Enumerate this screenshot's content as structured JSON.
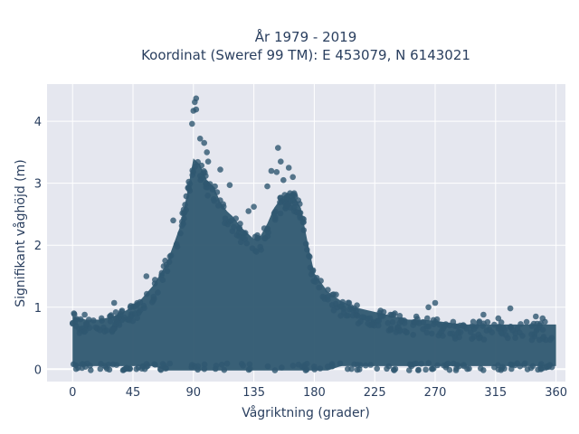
{
  "chart_data": {
    "type": "scatter",
    "title_line1": "År 1979 - 2019",
    "title_line2": "Koordinat (Sweref 99 TM): E 453079, N 6143021",
    "xlabel": "Vågriktning (grader)",
    "ylabel": "Signifikant våghöjd (m)",
    "xlim": [
      -19,
      367
    ],
    "ylim": [
      -0.2,
      4.6
    ],
    "x_ticks": [
      0,
      45,
      90,
      135,
      180,
      225,
      270,
      315,
      360
    ],
    "x_tick_labels": [
      "0",
      "45",
      "90",
      "135",
      "180",
      "225",
      "270",
      "315",
      "360"
    ],
    "y_ticks": [
      0,
      1,
      2,
      3,
      4
    ],
    "y_tick_labels": [
      "0",
      "1",
      "2",
      "3",
      "4"
    ],
    "grid": true,
    "colors": {
      "marker": "#2f5870",
      "plot_bg": "#e5e7ef",
      "grid": "#ffffff",
      "text": "#2a3f5f"
    },
    "envelope": {
      "x": [
        0,
        10,
        20,
        30,
        40,
        50,
        60,
        70,
        80,
        85,
        90,
        95,
        100,
        105,
        110,
        115,
        120,
        125,
        130,
        135,
        140,
        145,
        150,
        155,
        160,
        165,
        170,
        175,
        180,
        190,
        200,
        210,
        220,
        230,
        240,
        250,
        260,
        270,
        280,
        290,
        300,
        310,
        320,
        330,
        340,
        350,
        360
      ],
      "upper": [
        0.85,
        0.8,
        0.8,
        0.85,
        0.95,
        1.1,
        1.35,
        1.7,
        2.3,
        2.8,
        3.4,
        3.3,
        3.05,
        2.95,
        2.7,
        2.55,
        2.45,
        2.3,
        2.2,
        2.1,
        2.15,
        2.35,
        2.6,
        2.75,
        2.85,
        2.8,
        2.6,
        2.05,
        1.55,
        1.25,
        1.1,
        1.0,
        0.95,
        0.9,
        0.85,
        0.8,
        0.8,
        0.78,
        0.75,
        0.72,
        0.72,
        0.72,
        0.72,
        0.72,
        0.72,
        0.72,
        0.72
      ]
    },
    "notable_points": [
      {
        "x": 92,
        "y": 4.37
      },
      {
        "x": 91,
        "y": 4.31
      },
      {
        "x": 90,
        "y": 4.17
      },
      {
        "x": 92,
        "y": 4.19
      },
      {
        "x": 89,
        "y": 3.96
      },
      {
        "x": 95,
        "y": 3.72
      },
      {
        "x": 98,
        "y": 3.65
      },
      {
        "x": 100,
        "y": 3.5
      },
      {
        "x": 101,
        "y": 3.35
      },
      {
        "x": 110,
        "y": 3.22
      },
      {
        "x": 117,
        "y": 2.97
      },
      {
        "x": 153,
        "y": 3.57
      },
      {
        "x": 155,
        "y": 3.35
      },
      {
        "x": 148,
        "y": 3.2
      },
      {
        "x": 152,
        "y": 3.18
      },
      {
        "x": 161,
        "y": 3.25
      },
      {
        "x": 164,
        "y": 3.1
      },
      {
        "x": 157,
        "y": 3.05
      },
      {
        "x": 145,
        "y": 2.95
      },
      {
        "x": 135,
        "y": 2.62
      },
      {
        "x": 131,
        "y": 2.55
      },
      {
        "x": 75,
        "y": 2.4
      },
      {
        "x": 69,
        "y": 1.75
      },
      {
        "x": 55,
        "y": 1.5
      },
      {
        "x": 31,
        "y": 1.07
      },
      {
        "x": 9,
        "y": 0.88
      },
      {
        "x": 1,
        "y": 0.9
      },
      {
        "x": 265,
        "y": 1.0
      },
      {
        "x": 270,
        "y": 1.07
      },
      {
        "x": 256,
        "y": 0.85
      },
      {
        "x": 306,
        "y": 0.88
      },
      {
        "x": 317,
        "y": 0.82
      },
      {
        "x": 326,
        "y": 0.98
      },
      {
        "x": 345,
        "y": 0.85
      },
      {
        "x": 350,
        "y": 0.82
      },
      {
        "x": 240,
        "y": 0.9
      }
    ]
  }
}
